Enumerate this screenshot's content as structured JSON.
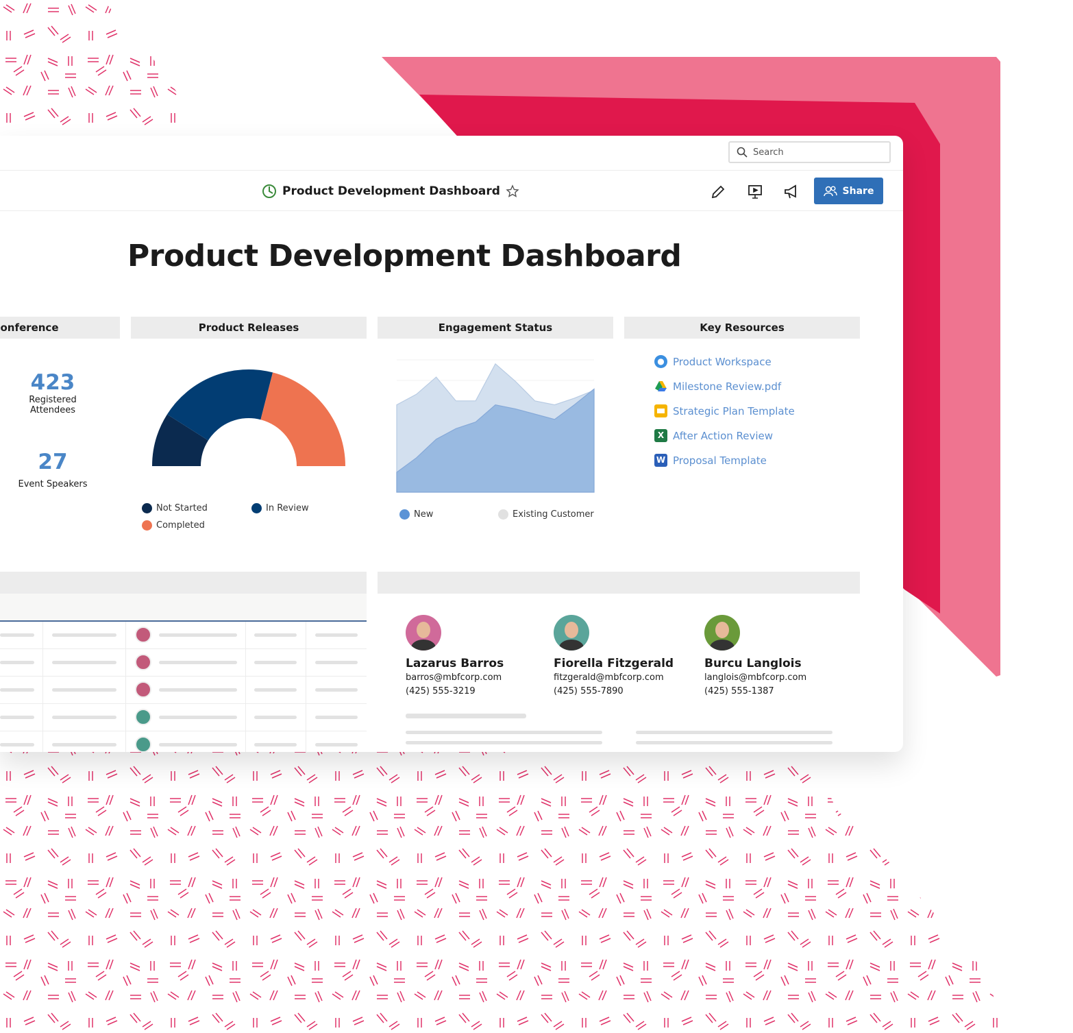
{
  "search": {
    "placeholder": "Search"
  },
  "header": {
    "title": "Product Development Dashboard",
    "share": "Share"
  },
  "page_title": "Product Development Dashboard",
  "conference": {
    "title": "Conference",
    "stats": [
      {
        "value": 423,
        "label": "Registered Attendees"
      },
      {
        "value": 27,
        "label": "Event Speakers"
      }
    ]
  },
  "chart_data": [
    {
      "type": "donut",
      "title": "Product Releases",
      "categories": [
        "Not Started",
        "In Review",
        "Completed"
      ],
      "values": [
        18,
        40,
        42
      ],
      "colors": [
        "#0b2a4f",
        "#023d73",
        "#ee7350"
      ]
    },
    {
      "type": "area",
      "title": "Engagement Status",
      "ylim": [
        0,
        100
      ],
      "series": [
        {
          "name": "New",
          "color": "#5b93d6",
          "values": [
            15,
            26,
            40,
            48,
            53,
            66,
            63,
            59,
            55,
            66,
            78
          ]
        },
        {
          "name": "Existing Customer",
          "color": "#e1e1e1",
          "values": [
            66,
            74,
            87,
            69,
            69,
            97,
            84,
            69,
            66,
            71,
            77
          ]
        }
      ]
    }
  ],
  "key_resources": {
    "title": "Key Resources",
    "items": [
      "Product Workspace",
      "Milestone Review.pdf",
      "Strategic Plan Template",
      "After Action Review",
      "Proposal Template"
    ]
  },
  "contacts": [
    {
      "name": "Lazarus Barros",
      "email": "barros@mbfcorp.com",
      "phone": "(425) 555-3219"
    },
    {
      "name": "Fiorella Fitzgerald",
      "email": "fitzgerald@mbfcorp.com",
      "phone": "(425) 555-7890"
    },
    {
      "name": "Burcu Langlois",
      "email": "langlois@mbfcorp.com",
      "phone": "(425) 555-1387"
    }
  ]
}
